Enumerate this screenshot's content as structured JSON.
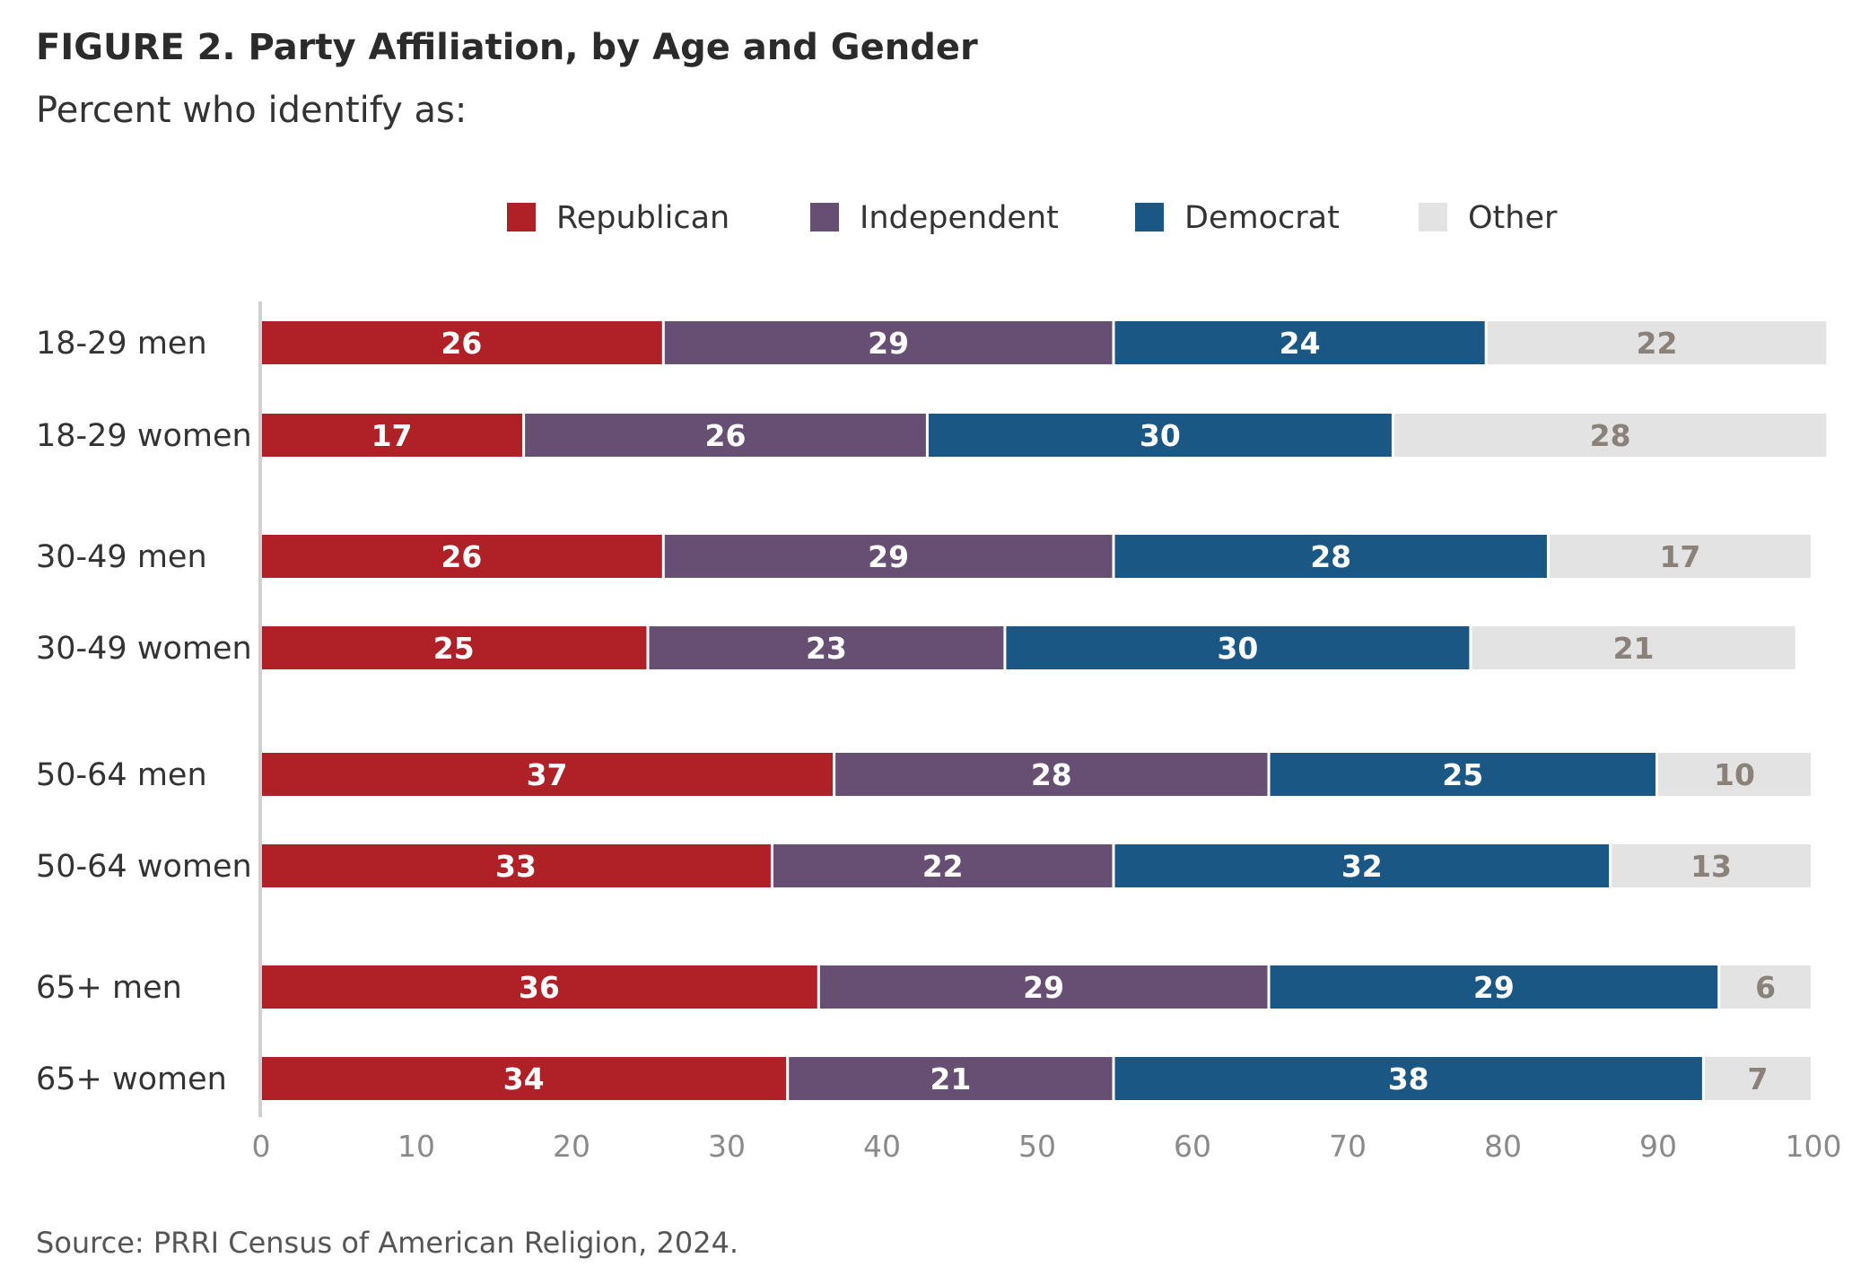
{
  "title": "FIGURE 2.  Party Affiliation, by Age and Gender",
  "subtitle": "Percent who identify as:",
  "source": "Source: PRRI Census of American Religion, 2024.",
  "colors": {
    "Republican": "#b02127",
    "Independent": "#674f74",
    "Democrat": "#1b5784",
    "Other": "#e3e3e4",
    "label_on_dark": "#ffffff",
    "label_on_light": "#8a8178",
    "axis": "#d0d0d0",
    "tick_text": "#8a8a8a"
  },
  "chart_data": {
    "type": "bar",
    "orientation": "horizontal",
    "stacked": true,
    "legend_position": "top-center",
    "grid": false,
    "xlim": [
      0,
      100
    ],
    "xticks": [
      0,
      10,
      20,
      30,
      40,
      50,
      60,
      70,
      80,
      90,
      100
    ],
    "categories": [
      "18-29 men",
      "18-29 women",
      "30-49 men",
      "30-49 women",
      "50-64 men",
      "50-64 women",
      "65+ men",
      "65+ women"
    ],
    "series": [
      {
        "name": "Republican",
        "values": [
          26,
          17,
          26,
          25,
          37,
          33,
          36,
          34
        ]
      },
      {
        "name": "Independent",
        "values": [
          29,
          26,
          29,
          23,
          28,
          22,
          29,
          21
        ]
      },
      {
        "name": "Democrat",
        "values": [
          24,
          30,
          28,
          30,
          25,
          32,
          29,
          38
        ]
      },
      {
        "name": "Other",
        "values": [
          22,
          28,
          17,
          21,
          10,
          13,
          6,
          7
        ]
      }
    ]
  }
}
